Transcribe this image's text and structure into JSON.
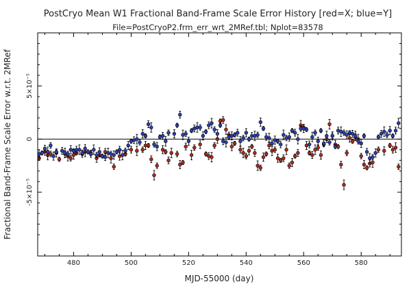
{
  "chart_data": {
    "type": "scatter",
    "title": "PostCryo Mean W1 Fractional Band-Frame Scale Error History [red=X; blue=Y]",
    "subtitle": "File=PostCryoP2.frm_err_wrt_2MRef.tbl; Nplot=83578",
    "xlabel": "MJD-55000 (day)",
    "ylabel": "Fractional Band-Frame Scale Error w.r.t. 2MRef",
    "xlim": [
      467.5,
      594
    ],
    "ylim": [
      -0.00011,
      0.0001
    ],
    "x_ticks": [
      {
        "value": 480,
        "label": "480"
      },
      {
        "value": 500,
        "label": "500"
      },
      {
        "value": 520,
        "label": "520"
      },
      {
        "value": 540,
        "label": "540"
      },
      {
        "value": 560,
        "label": "560"
      },
      {
        "value": 580,
        "label": "580"
      }
    ],
    "y_ticks": [
      {
        "value": 5e-05,
        "label": "5×10⁻⁵"
      },
      {
        "value": 0,
        "label": "0"
      },
      {
        "value": -5e-05,
        "label": "-5×10⁻⁵"
      }
    ],
    "zero_line": true,
    "grid": false,
    "series": [
      {
        "name": "red=X",
        "color": "#b02a1c",
        "points": [
          [
            468,
            -1.8e-05
          ],
          [
            470,
            -1.2e-05
          ],
          [
            471,
            -1.5e-05
          ],
          [
            472,
            -1.4e-05
          ],
          [
            474,
            -1.3e-05
          ],
          [
            475,
            -1.9e-05
          ],
          [
            477,
            -1.4e-05
          ],
          [
            478,
            -1.6e-05
          ],
          [
            479,
            -1.8e-05
          ],
          [
            480,
            -1.5e-05
          ],
          [
            481,
            -1.3e-05
          ],
          [
            483,
            -1.4e-05
          ],
          [
            484,
            -1.2e-05
          ],
          [
            486,
            -1.3e-05
          ],
          [
            488,
            -1.8e-05
          ],
          [
            489,
            -1.5e-05
          ],
          [
            491,
            -1.2e-05
          ],
          [
            493,
            -1.8e-05
          ],
          [
            494,
            -2.6e-05
          ],
          [
            496,
            -1.6e-05
          ],
          [
            498,
            -1.4e-05
          ],
          [
            500,
            -1e-05
          ],
          [
            502,
            -1.1e-05
          ],
          [
            504,
            -1e-05
          ],
          [
            505,
            -6e-06
          ],
          [
            506,
            -6e-06
          ],
          [
            507,
            -1.9e-05
          ],
          [
            508,
            -3.4e-05
          ],
          [
            509,
            -2.5e-05
          ],
          [
            511,
            -1e-05
          ],
          [
            512,
            -1.2e-05
          ],
          [
            513,
            -2e-05
          ],
          [
            514,
            -1.3e-05
          ],
          [
            516,
            -1.4e-05
          ],
          [
            517,
            -2.4e-05
          ],
          [
            518,
            -2.2e-05
          ],
          [
            519,
            -7e-06
          ],
          [
            521,
            -1.5e-05
          ],
          [
            522,
            -8e-06
          ],
          [
            524,
            -5e-06
          ],
          [
            526,
            -1.4e-05
          ],
          [
            527,
            -1.6e-05
          ],
          [
            528,
            -1.7e-05
          ],
          [
            529,
            -6e-06
          ],
          [
            530,
            0.0
          ],
          [
            531,
            1.7e-05
          ],
          [
            532,
            1.8e-05
          ],
          [
            533,
            9e-06
          ],
          [
            534,
            4e-06
          ],
          [
            535,
            -7e-06
          ],
          [
            536,
            -4e-06
          ],
          [
            538,
            -1e-05
          ],
          [
            539,
            -1.3e-05
          ],
          [
            540,
            -1.6e-05
          ],
          [
            541,
            -1.1e-05
          ],
          [
            542,
            -7e-06
          ],
          [
            543,
            -1.3e-05
          ],
          [
            544,
            -2.5e-05
          ],
          [
            545,
            -2.7e-05
          ],
          [
            546,
            -1.7e-05
          ],
          [
            547,
            -1.4e-05
          ],
          [
            548,
            -6e-06
          ],
          [
            549,
            -1.1e-05
          ],
          [
            550,
            -1e-05
          ],
          [
            551,
            -1.8e-05
          ],
          [
            552,
            -2e-05
          ],
          [
            553,
            -1.8e-05
          ],
          [
            554,
            -1e-05
          ],
          [
            555,
            -2.5e-05
          ],
          [
            556,
            -2.2e-05
          ],
          [
            557,
            -1.6e-05
          ],
          [
            558,
            -1.3e-05
          ],
          [
            559,
            1.3e-05
          ],
          [
            560,
            1.1e-05
          ],
          [
            561,
            -6e-06
          ],
          [
            562,
            -1.3e-05
          ],
          [
            563,
            -1.5e-05
          ],
          [
            564,
            -1e-05
          ],
          [
            565,
            -8e-06
          ],
          [
            566,
            -1.5e-05
          ],
          [
            567,
            -5e-06
          ],
          [
            568,
            0.0
          ],
          [
            569,
            1.4e-05
          ],
          [
            570,
            3e-06
          ],
          [
            571,
            -5e-06
          ],
          [
            572,
            -7e-06
          ],
          [
            573,
            -2.4e-05
          ],
          [
            574,
            -4.3e-05
          ],
          [
            575,
            -1.3e-05
          ],
          [
            576,
            1e-06
          ],
          [
            577,
            -2e-06
          ],
          [
            578,
            2e-06
          ],
          [
            579,
            0.0
          ],
          [
            580,
            -1.6e-05
          ],
          [
            581,
            -2.4e-05
          ],
          [
            582,
            -2.7e-05
          ],
          [
            583,
            -2.3e-05
          ],
          [
            584,
            -2.2e-05
          ],
          [
            586,
            -1e-05
          ],
          [
            588,
            -1.1e-05
          ],
          [
            590,
            -6e-06
          ],
          [
            591,
            -1e-05
          ],
          [
            592,
            -8e-06
          ],
          [
            593,
            -2.6e-05
          ]
        ]
      },
      {
        "name": "blue=Y",
        "color": "#2a3fb3",
        "points": [
          [
            468,
            -1.4e-05
          ],
          [
            469,
            -1.3e-05
          ],
          [
            470,
            -9e-06
          ],
          [
            471,
            -1.2e-05
          ],
          [
            472,
            -6e-06
          ],
          [
            473,
            -1.6e-05
          ],
          [
            474,
            -1.2e-05
          ],
          [
            476,
            -1.1e-05
          ],
          [
            477,
            -1.3e-05
          ],
          [
            478,
            -1.4e-05
          ],
          [
            479,
            -1e-05
          ],
          [
            480,
            -1.1e-05
          ],
          [
            481,
            -1e-05
          ],
          [
            482,
            -1e-05
          ],
          [
            483,
            -1.3e-05
          ],
          [
            484,
            -9e-06
          ],
          [
            485,
            -1.2e-05
          ],
          [
            486,
            -1.4e-05
          ],
          [
            487,
            -1e-05
          ],
          [
            488,
            -1.5e-05
          ],
          [
            489,
            -1.2e-05
          ],
          [
            490,
            -1.6e-05
          ],
          [
            491,
            -1.7e-05
          ],
          [
            492,
            -1.3e-05
          ],
          [
            493,
            -1.4e-05
          ],
          [
            494,
            -1.5e-05
          ],
          [
            495,
            -1.2e-05
          ],
          [
            496,
            -1e-05
          ],
          [
            497,
            -1.5e-05
          ],
          [
            498,
            -1.1e-05
          ],
          [
            499,
            -6e-06
          ],
          [
            500,
            -2e-06
          ],
          [
            501,
            -1e-06
          ],
          [
            502,
            0.0
          ],
          [
            503,
            -3e-06
          ],
          [
            504,
            5e-06
          ],
          [
            505,
            3e-06
          ],
          [
            506,
            1.4e-05
          ],
          [
            507,
            1.1e-05
          ],
          [
            508,
            -5e-06
          ],
          [
            509,
            -7e-06
          ],
          [
            510,
            2e-06
          ],
          [
            511,
            3e-06
          ],
          [
            512,
            -2e-06
          ],
          [
            513,
            6e-06
          ],
          [
            515,
            5e-06
          ],
          [
            516,
            1.3e-05
          ],
          [
            517,
            2.3e-05
          ],
          [
            518,
            4e-06
          ],
          [
            519,
            5e-06
          ],
          [
            520,
            -2e-06
          ],
          [
            521,
            8e-06
          ],
          [
            522,
            1e-05
          ],
          [
            523,
            1.1e-05
          ],
          [
            524,
            1.1e-05
          ],
          [
            525,
            3e-06
          ],
          [
            526,
            7e-06
          ],
          [
            527,
            1.3e-05
          ],
          [
            528,
            1.5e-05
          ],
          [
            529,
            9e-06
          ],
          [
            530,
            5e-06
          ],
          [
            531,
            1.3e-05
          ],
          [
            532,
            -2e-06
          ],
          [
            533,
            -3e-06
          ],
          [
            534,
            2e-06
          ],
          [
            535,
            3e-06
          ],
          [
            536,
            4e-06
          ],
          [
            537,
            6e-06
          ],
          [
            538,
            -2e-06
          ],
          [
            539,
            1e-06
          ],
          [
            540,
            6e-06
          ],
          [
            541,
            0.0
          ],
          [
            542,
            3e-06
          ],
          [
            543,
            3e-06
          ],
          [
            544,
            4e-06
          ],
          [
            545,
            1.6e-05
          ],
          [
            546,
            1e-05
          ],
          [
            547,
            2e-06
          ],
          [
            548,
            1e-06
          ],
          [
            549,
            -4e-06
          ],
          [
            550,
            -1e-06
          ],
          [
            551,
            -2e-06
          ],
          [
            552,
            -5e-06
          ],
          [
            553,
            4e-06
          ],
          [
            554,
            1e-06
          ],
          [
            555,
            2e-06
          ],
          [
            556,
            8e-06
          ],
          [
            557,
            6e-06
          ],
          [
            558,
            0.0
          ],
          [
            559,
            1e-05
          ],
          [
            560,
            1e-05
          ],
          [
            561,
            9e-06
          ],
          [
            562,
            -5e-06
          ],
          [
            563,
            2e-06
          ],
          [
            564,
            6e-06
          ],
          [
            565,
            -2e-06
          ],
          [
            566,
            8e-06
          ],
          [
            567,
            -4e-06
          ],
          [
            568,
            3e-06
          ],
          [
            569,
            -3e-06
          ],
          [
            570,
            3e-06
          ],
          [
            571,
            -7e-06
          ],
          [
            572,
            8e-06
          ],
          [
            573,
            7e-06
          ],
          [
            574,
            6e-06
          ],
          [
            575,
            4e-06
          ],
          [
            576,
            6e-06
          ],
          [
            577,
            5e-06
          ],
          [
            578,
            3e-06
          ],
          [
            579,
            -2e-06
          ],
          [
            580,
            -4e-06
          ],
          [
            581,
            3e-06
          ],
          [
            582,
            -1.2e-05
          ],
          [
            583,
            -1.8e-05
          ],
          [
            584,
            -1.7e-05
          ],
          [
            585,
            -1.3e-05
          ],
          [
            586,
            2e-06
          ],
          [
            587,
            5e-06
          ],
          [
            588,
            7e-06
          ],
          [
            589,
            4e-06
          ],
          [
            590,
            8e-06
          ],
          [
            591,
            3e-06
          ],
          [
            592,
            8e-06
          ],
          [
            593,
            1.5e-05
          ]
        ]
      }
    ]
  }
}
